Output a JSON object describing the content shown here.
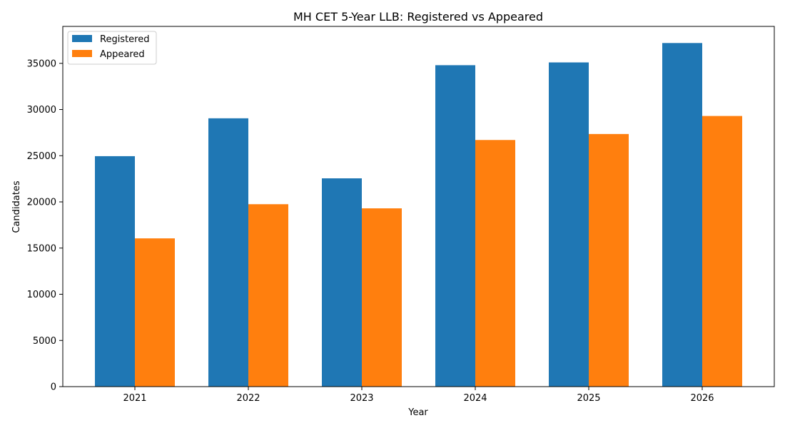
{
  "chart_data": {
    "type": "bar",
    "title": "MH CET 5-Year LLB: Registered vs Appeared",
    "xlabel": "Year",
    "ylabel": "Candidates",
    "categories": [
      "2021",
      "2022",
      "2023",
      "2024",
      "2025",
      "2026"
    ],
    "series": [
      {
        "name": "Registered",
        "color": "#1f77b4",
        "values": [
          24950,
          29050,
          22550,
          34800,
          35100,
          37200
        ]
      },
      {
        "name": "Appeared",
        "color": "#ff7f0e",
        "values": [
          16050,
          19750,
          19300,
          26700,
          27350,
          29300
        ]
      }
    ],
    "ylim": [
      0,
      39000
    ],
    "yticks": [
      0,
      5000,
      10000,
      15000,
      20000,
      25000,
      30000,
      35000
    ],
    "grid": false,
    "legend_position": "top-left"
  }
}
